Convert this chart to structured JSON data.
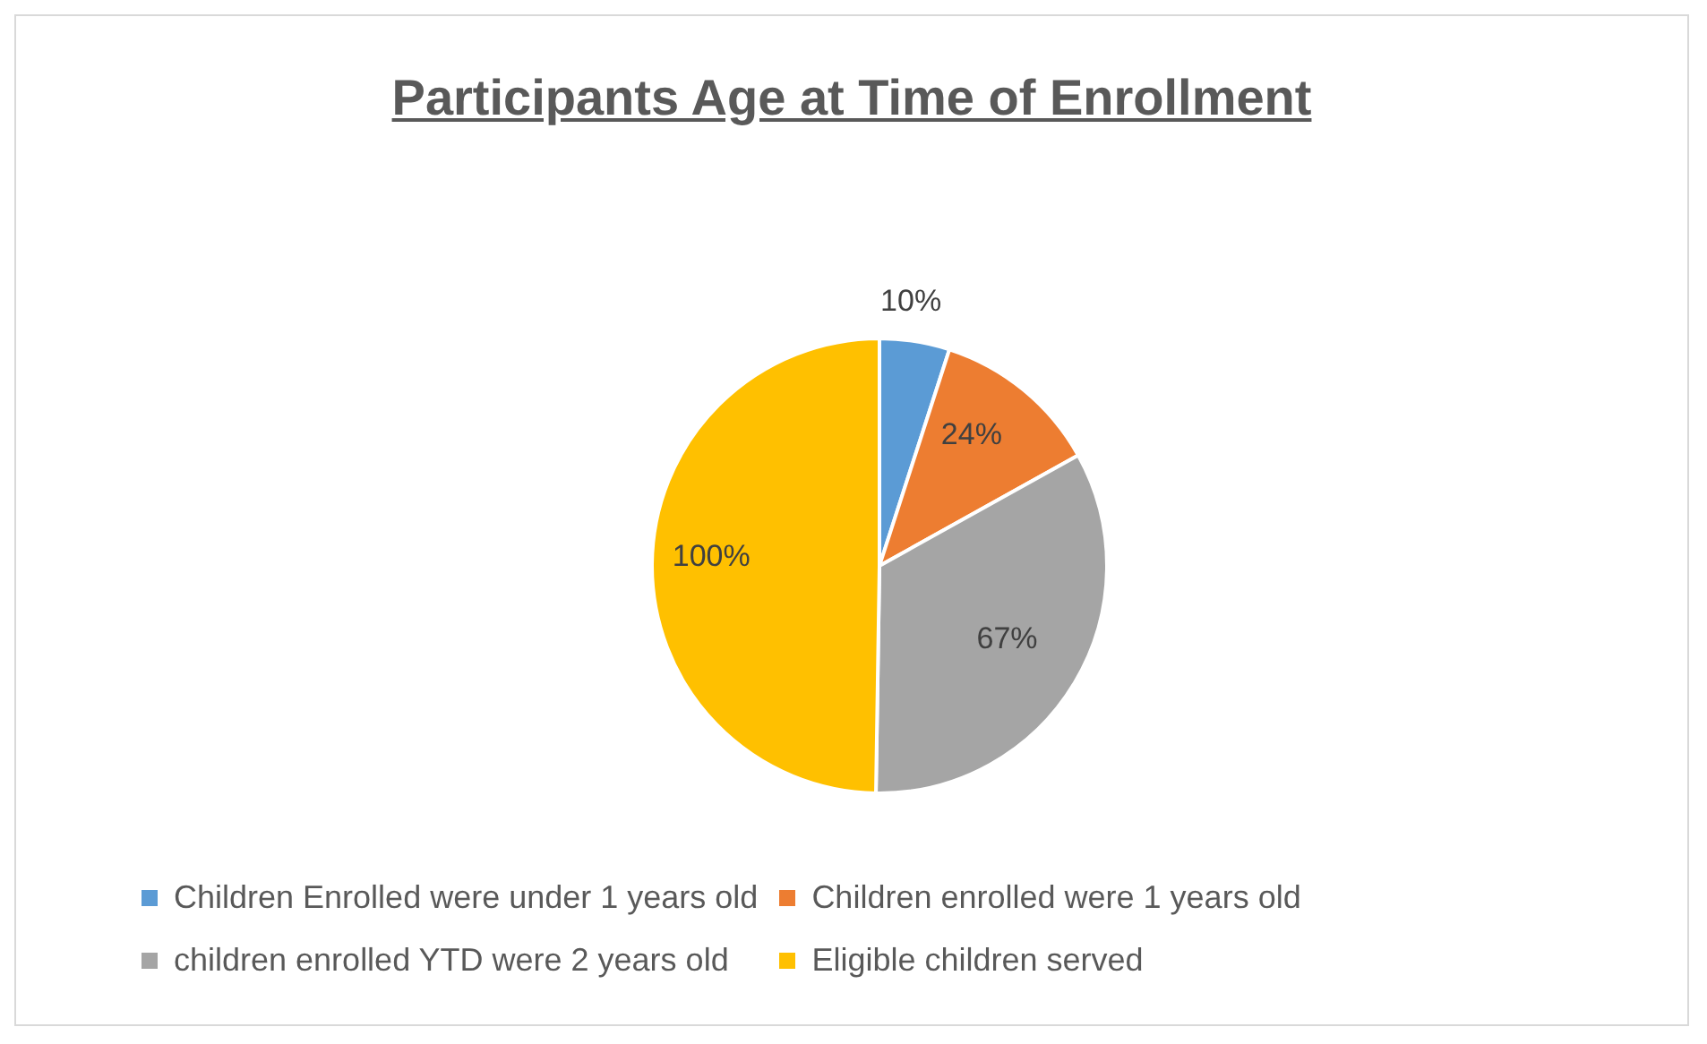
{
  "chart_data": {
    "type": "pie",
    "title": "Participants Age at Time of Enrollment",
    "categories": [
      "Children Enrolled were under 1 years old",
      "Children enrolled were 1 years old",
      "children enrolled YTD were 2 years old",
      "Eligible children served"
    ],
    "values": [
      10,
      24,
      67,
      100
    ],
    "colors": [
      "#5b9bd5",
      "#ed7d31",
      "#a5a5a5",
      "#ffc000"
    ],
    "value_labels": [
      "10%",
      "24%",
      "67%",
      "100%"
    ],
    "legend": "bottom"
  }
}
